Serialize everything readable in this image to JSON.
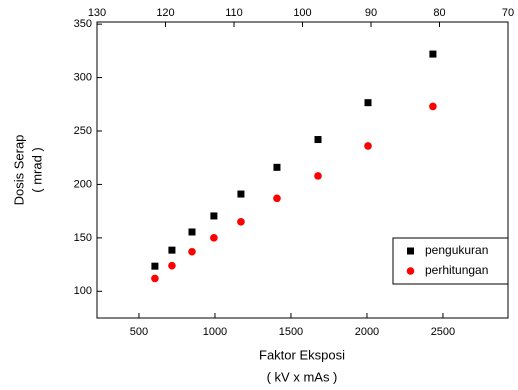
{
  "chart_data": {
    "type": "scatter",
    "x_label": [
      "Faktor Eksposi",
      "( kV x mAs )"
    ],
    "y_label": [
      "Dosis Serap",
      "( mrad )"
    ],
    "xlim": [
      224,
      2928
    ],
    "xticks": [
      500,
      1000,
      1500,
      2000,
      2500
    ],
    "x2lim": [
      130,
      70
    ],
    "x2ticks": [
      130,
      120,
      110,
      100,
      90,
      80,
      70
    ],
    "ylim": [
      75,
      352
    ],
    "yticks": [
      100,
      150,
      200,
      250,
      300,
      350
    ],
    "legend": "lower right",
    "series": [
      {
        "name": "pengukuran",
        "color": "#000000",
        "marker": "square",
        "x": [
          605,
          717,
          849,
          993,
          1171,
          1408,
          1678,
          2007,
          2434
        ],
        "values": [
          123.5,
          138.5,
          155.5,
          170.5,
          191,
          216,
          242,
          276.5,
          322
        ]
      },
      {
        "name": "perhitungan",
        "color": "#ff0000",
        "marker": "circle",
        "x": [
          605,
          717,
          849,
          993,
          1171,
          1408,
          1678,
          2007,
          2434
        ],
        "values": [
          112,
          124,
          137,
          150,
          165,
          187,
          208,
          236,
          273
        ]
      }
    ]
  }
}
